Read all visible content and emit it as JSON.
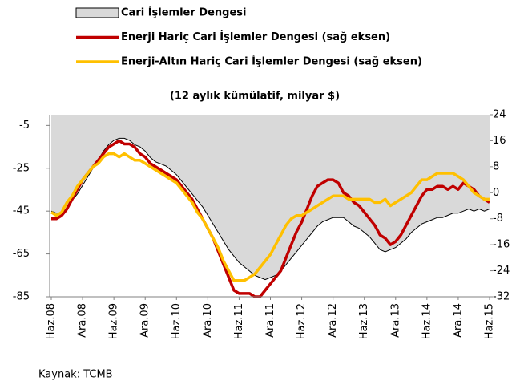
{
  "chart_data": {
    "type": "line",
    "subtitle": "(12 aylık kümülatif, milyar $)",
    "source": "Kaynak: TCMB",
    "categories": [
      "Haz.08",
      null,
      null,
      null,
      null,
      null,
      "Ara.08",
      null,
      null,
      null,
      null,
      null,
      "Haz.09",
      null,
      null,
      null,
      null,
      null,
      "Ara.09",
      null,
      null,
      null,
      null,
      null,
      "Haz.10",
      null,
      null,
      null,
      null,
      null,
      "Ara.10",
      null,
      null,
      null,
      null,
      null,
      "Haz.11",
      null,
      null,
      null,
      null,
      null,
      "Ara.11",
      null,
      null,
      null,
      null,
      null,
      "Haz.12",
      null,
      null,
      null,
      null,
      null,
      "Ara.12",
      null,
      null,
      null,
      null,
      null,
      "Haz.13",
      null,
      null,
      null,
      null,
      null,
      "Ara.13",
      null,
      null,
      null,
      null,
      null,
      "Haz.14",
      null,
      null,
      null,
      null,
      null,
      "Ara.14",
      null,
      null,
      null,
      null,
      null,
      "Haz.15"
    ],
    "series": [
      {
        "name": "Cari İşlemler Dengesi",
        "type": "area",
        "color": "#d9d9d9",
        "line_color": "#000000",
        "axis": "y",
        "values": [
          -45,
          -46,
          -46,
          -44,
          -40,
          -37,
          -33,
          -29,
          -25,
          -21,
          -17,
          -14,
          -12,
          -11,
          -11,
          -12,
          -14,
          -15,
          -17,
          -20,
          -22,
          -23,
          -24,
          -26,
          -28,
          -31,
          -34,
          -37,
          -40,
          -43,
          -47,
          -51,
          -55,
          -59,
          -63,
          -66,
          -69,
          -71,
          -73,
          -75,
          -76,
          -77,
          -76,
          -75,
          -73,
          -70,
          -67,
          -64,
          -61,
          -58,
          -55,
          -52,
          -50,
          -49,
          -48,
          -48,
          -48,
          -50,
          -52,
          -53,
          -55,
          -57,
          -60,
          -63,
          -64,
          -63,
          -62,
          -60,
          -58,
          -55,
          -53,
          -51,
          -50,
          -49,
          -48,
          -48,
          -47,
          -46,
          -46,
          -45,
          -44,
          -45,
          -44,
          -45,
          -44
        ]
      },
      {
        "name": "Enerji Hariç Cari İşlemler Dengesi (sağ eksen)",
        "type": "line",
        "color": "#c00000",
        "axis": "y2",
        "values": [
          -8,
          -8,
          -7,
          -5,
          -2,
          1,
          4,
          6,
          8,
          10,
          12,
          14,
          15,
          16,
          15,
          15,
          14,
          12,
          11,
          9,
          8,
          7,
          6,
          5,
          4,
          2,
          0,
          -2,
          -5,
          -8,
          -11,
          -14,
          -18,
          -22,
          -26,
          -30,
          -31,
          -31,
          -31,
          -32,
          -32,
          -30,
          -28,
          -26,
          -24,
          -20,
          -16,
          -12,
          -9,
          -5,
          -1,
          2,
          3,
          4,
          4,
          3,
          0,
          -1,
          -3,
          -4,
          -6,
          -8,
          -10,
          -13,
          -14,
          -16,
          -15,
          -13,
          -10,
          -7,
          -4,
          -1,
          1,
          1,
          2,
          2,
          1,
          2,
          1,
          3,
          2,
          1,
          -1,
          -2,
          -3
        ]
      },
      {
        "name": "Enerji-Altın Hariç Cari İşlemler Dengesi (sağ eksen)",
        "type": "line",
        "color": "#ffc000",
        "axis": "y2",
        "values": [
          -6,
          -7,
          -6,
          -3,
          -1,
          2,
          4,
          6,
          8,
          9,
          11,
          12,
          12,
          11,
          12,
          11,
          10,
          10,
          9,
          8,
          7,
          6,
          5,
          4,
          3,
          1,
          -1,
          -3,
          -6,
          -8,
          -11,
          -14,
          -17,
          -21,
          -24,
          -27,
          -27,
          -27,
          -26,
          -25,
          -23,
          -21,
          -19,
          -16,
          -13,
          -10,
          -8,
          -7,
          -7,
          -6,
          -5,
          -4,
          -3,
          -2,
          -1,
          -1,
          -1,
          -2,
          -2,
          -2,
          -2,
          -2,
          -3,
          -3,
          -2,
          -4,
          -3,
          -2,
          -1,
          0,
          2,
          4,
          4,
          5,
          6,
          6,
          6,
          6,
          5,
          4,
          2,
          0,
          -1,
          -2,
          -2
        ]
      }
    ],
    "ylim": [
      -85,
      0
    ],
    "yticks": [
      -85,
      -65,
      -45,
      -25,
      -5
    ],
    "y2lim": [
      -32,
      24
    ],
    "y2ticks": [
      -32,
      -24,
      -16,
      -8,
      0,
      8,
      16,
      24
    ]
  }
}
